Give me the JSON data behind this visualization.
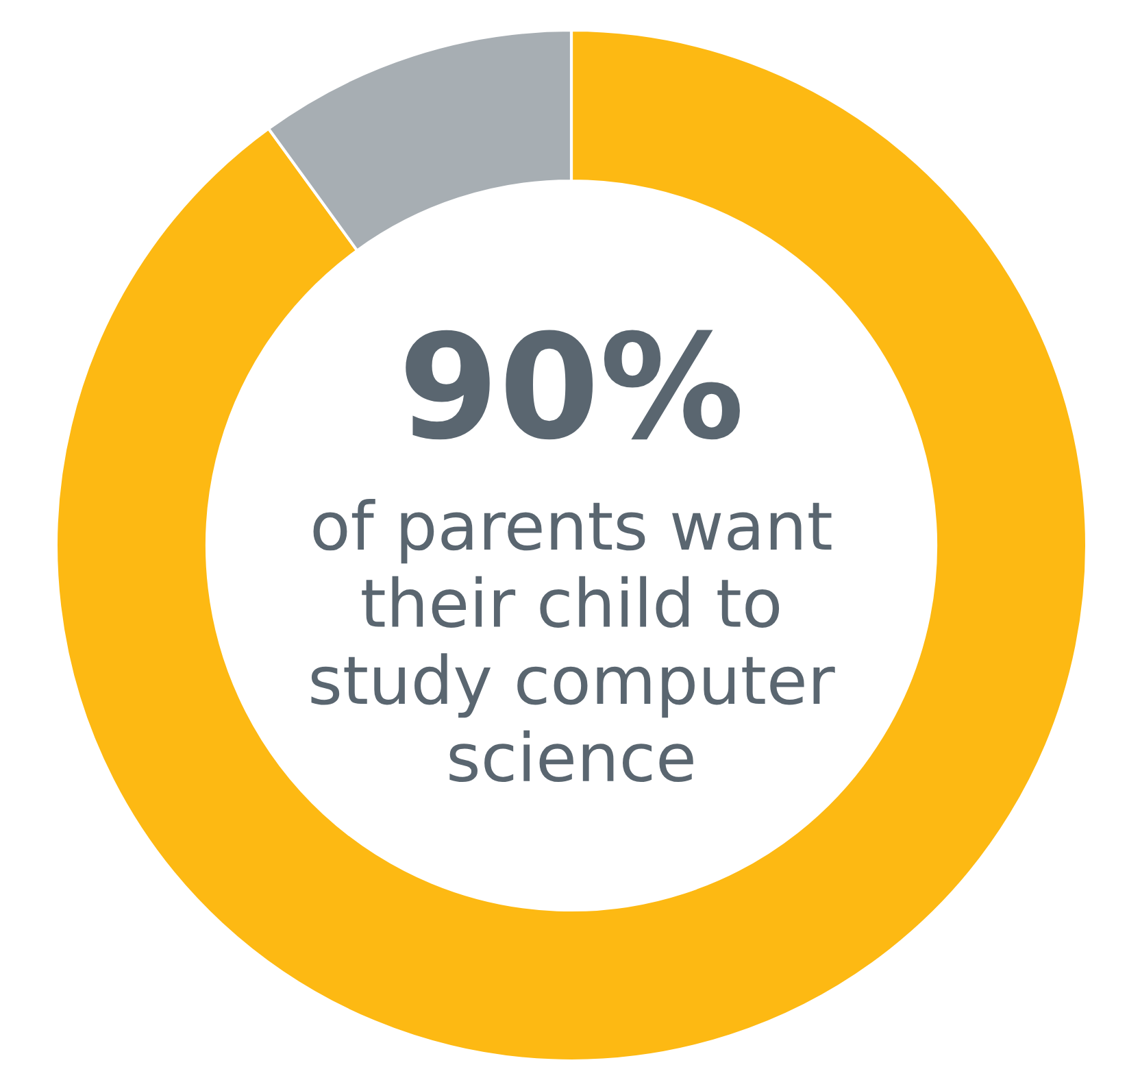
{
  "chart_data": {
    "type": "donut",
    "categories": [
      null,
      null
    ],
    "values": [
      90,
      10
    ],
    "colors": [
      "#fdb913",
      "#a7aeb3"
    ],
    "annotations": [
      "90%",
      "of parents want\ntheir child to\nstudy computer\nscience"
    ]
  }
}
